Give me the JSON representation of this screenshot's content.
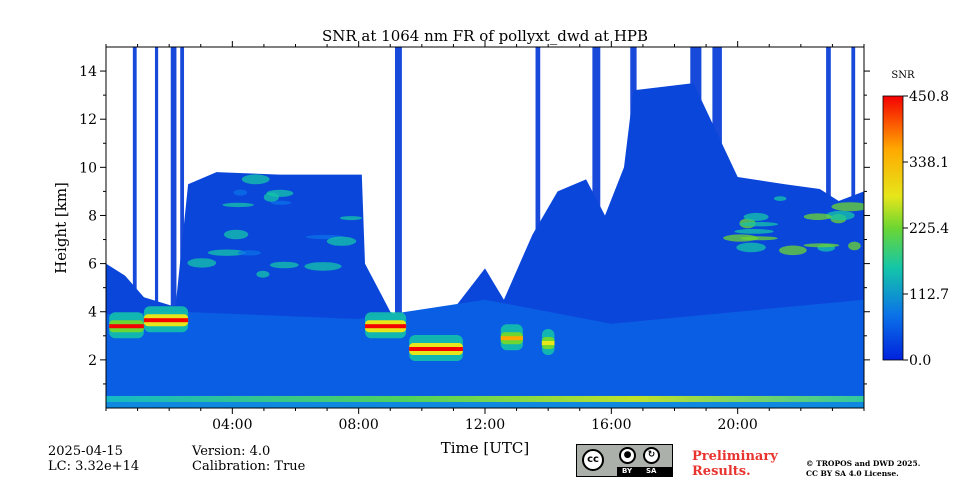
{
  "chart_data": {
    "type": "heatmap",
    "title": "SNR at 1064 nm FR of pollyxt_dwd at HPB",
    "xlabel": "Time [UTC]",
    "ylabel": "Height [km]",
    "xlim": [
      0,
      24
    ],
    "ylim": [
      0,
      15
    ],
    "x_ticks": [
      {
        "value": 4,
        "label": "04:00"
      },
      {
        "value": 8,
        "label": "08:00"
      },
      {
        "value": 12,
        "label": "12:00"
      },
      {
        "value": 16,
        "label": "16:00"
      },
      {
        "value": 20,
        "label": "20:00"
      }
    ],
    "y_ticks": [
      {
        "value": 2,
        "label": "2"
      },
      {
        "value": 4,
        "label": "4"
      },
      {
        "value": 6,
        "label": "6"
      },
      {
        "value": 8,
        "label": "8"
      },
      {
        "value": 10,
        "label": "10"
      },
      {
        "value": 12,
        "label": "12"
      },
      {
        "value": 14,
        "label": "14"
      }
    ],
    "colorbar": {
      "label": "SNR",
      "range": [
        0.0,
        450.8
      ],
      "ticks": [
        {
          "value": 0.0,
          "label": "0.0"
        },
        {
          "value": 112.7,
          "label": "112.7"
        },
        {
          "value": 225.4,
          "label": "225.4"
        },
        {
          "value": 338.1,
          "label": "338.1"
        },
        {
          "value": 450.8,
          "label": "450.8"
        }
      ],
      "colormap": [
        "#0022dd",
        "#0b72e8",
        "#14c6a8",
        "#6cd632",
        "#e6e61a",
        "#ffa800",
        "#f50000"
      ]
    },
    "features": {
      "near_surface_layer": {
        "height_km": [
          0.0,
          0.5
        ],
        "snr_range": [
          120,
          300
        ]
      },
      "aerosol_layer_top_km": [
        {
          "time_h": 0.0,
          "height_km": 3.9
        },
        {
          "time_h": 2.3,
          "height_km": 4.0
        },
        {
          "time_h": 8.0,
          "height_km": 3.7
        },
        {
          "time_h": 12.0,
          "height_km": 4.5
        },
        {
          "time_h": 16.0,
          "height_km": 3.5
        },
        {
          "time_h": 24.0,
          "height_km": 4.5
        }
      ],
      "cloud_layers": [
        {
          "start_h": 0.1,
          "end_h": 1.2,
          "height_km": 3.4,
          "max_snr": 420
        },
        {
          "start_h": 1.2,
          "end_h": 2.6,
          "height_km": 3.65,
          "max_snr": 450
        },
        {
          "start_h": 8.2,
          "end_h": 9.5,
          "height_km": 3.4,
          "max_snr": 440
        },
        {
          "start_h": 9.6,
          "end_h": 11.3,
          "height_km": 2.45,
          "max_snr": 450
        },
        {
          "start_h": 12.5,
          "end_h": 13.2,
          "height_km": 2.9,
          "max_snr": 380
        },
        {
          "start_h": 13.8,
          "end_h": 14.2,
          "height_km": 2.7,
          "max_snr": 330
        }
      ],
      "cirrus_patches": [
        {
          "start_h": 2.7,
          "end_h": 8.2,
          "height_km": [
            5.5,
            9.6
          ],
          "max_snr": 170
        },
        {
          "start_h": 20.0,
          "end_h": 23.8,
          "height_km": [
            6.5,
            9.2
          ],
          "max_snr": 260
        }
      ],
      "noise_above_km": 9.8
    }
  },
  "footer": {
    "date": "2025-04-15",
    "lc": "LC: 3.32e+14",
    "version": "Version: 4.0",
    "calibration": "Calibration: True",
    "preliminary_line1": "Preliminary",
    "preliminary_line2": "Results.",
    "copyright_line1": "© TROPOS and DWD 2025.",
    "copyright_line2": "CC BY SA 4.0 License.",
    "license_logo": {
      "cc": "cc",
      "by": "BY",
      "sa": "SA"
    }
  }
}
